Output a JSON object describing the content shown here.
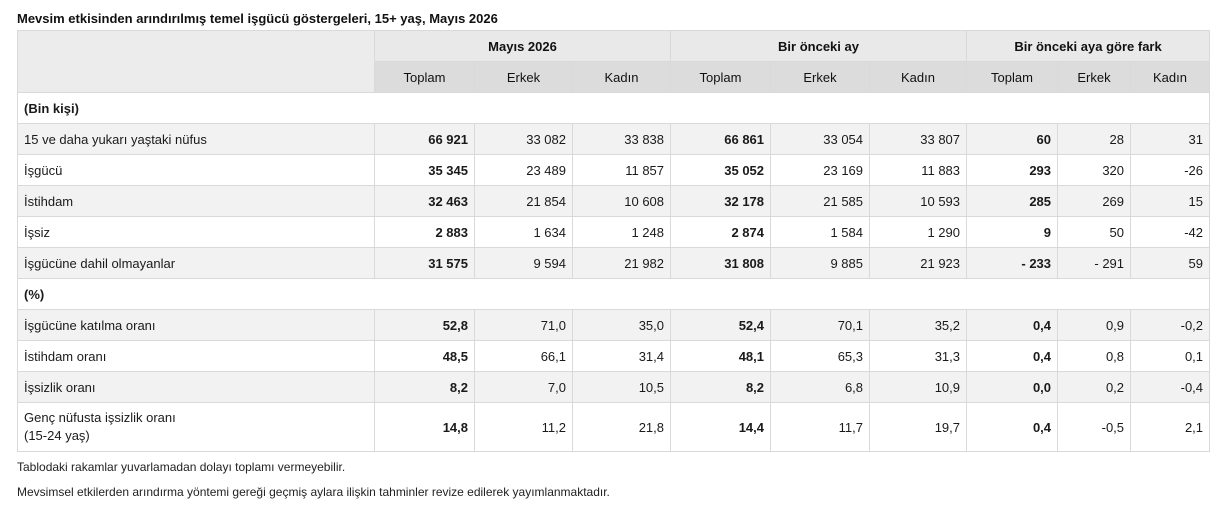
{
  "title": "Mevsim etkisinden arındırılmış temel işgücü göstergeleri, 15+ yaş, Mayıs 2026",
  "groups": [
    "Mayıs 2026",
    "Bir önceki ay",
    "Bir önceki aya göre fark"
  ],
  "subheaders": [
    "Toplam",
    "Erkek",
    "Kadın",
    "Toplam",
    "Erkek",
    "Kadın",
    "Toplam",
    "Erkek",
    "Kadın"
  ],
  "sections": {
    "thousands": "(Bin kişi)",
    "percent": "(%)"
  },
  "rows_thousands": [
    {
      "label": "15 ve daha yukarı yaştaki nüfus",
      "values": [
        "66 921",
        "33 082",
        "33 838",
        "66 861",
        "33 054",
        "33 807",
        "60",
        "28",
        "31"
      ]
    },
    {
      "label": "İşgücü",
      "values": [
        "35 345",
        "23 489",
        "11 857",
        "35 052",
        "23 169",
        "11 883",
        "293",
        "320",
        "-26"
      ]
    },
    {
      "label": "İstihdam",
      "values": [
        "32 463",
        "21 854",
        "10 608",
        "32 178",
        "21 585",
        "10 593",
        "285",
        "269",
        "15"
      ]
    },
    {
      "label": "İşsiz",
      "values": [
        "2 883",
        "1 634",
        "1 248",
        "2 874",
        "1 584",
        "1 290",
        "9",
        "50",
        "-42"
      ]
    },
    {
      "label": "İşgücüne dahil olmayanlar",
      "values": [
        "31 575",
        "9 594",
        "21 982",
        "31 808",
        "9 885",
        "21 923",
        "- 233",
        "- 291",
        "59"
      ]
    }
  ],
  "rows_percent": [
    {
      "label": "İşgücüne katılma oranı",
      "values": [
        "52,8",
        "71,0",
        "35,0",
        "52,4",
        "70,1",
        "35,2",
        "0,4",
        "0,9",
        "-0,2"
      ]
    },
    {
      "label": "İstihdam oranı",
      "values": [
        "48,5",
        "66,1",
        "31,4",
        "48,1",
        "65,3",
        "31,3",
        "0,4",
        "0,8",
        "0,1"
      ]
    },
    {
      "label": "İşsizlik oranı",
      "values": [
        "8,2",
        "7,0",
        "10,5",
        "8,2",
        "6,8",
        "10,9",
        "0,0",
        "0,2",
        "-0,4"
      ]
    },
    {
      "label_line1": "Genç nüfusta işsizlik oranı",
      "label_line2": "(15-24 yaş)",
      "values": [
        "14,8",
        "11,2",
        "21,8",
        "14,4",
        "11,7",
        "19,7",
        "0,4",
        "-0,5",
        "2,1"
      ]
    }
  ],
  "notes": [
    "Tablodaki rakamlar yuvarlamadan dolayı toplamı vermeyebilir.",
    "Mevsimsel etkilerden arındırma yöntemi gereği geçmiş aylara ilişkin tahminler revize edilerek yayımlanmaktadır."
  ]
}
